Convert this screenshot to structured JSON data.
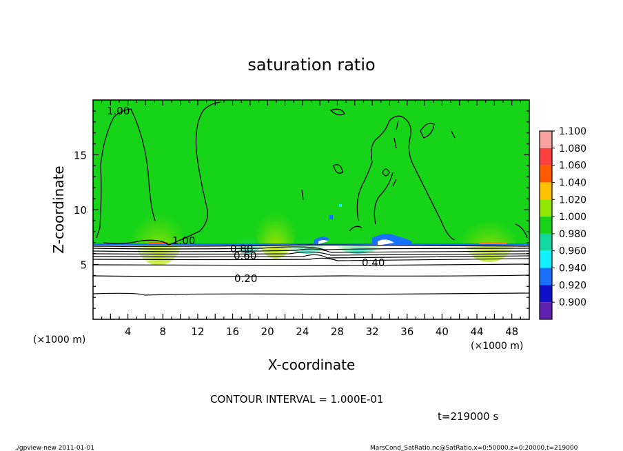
{
  "chart_data": {
    "type": "heatmap",
    "title": "saturation ratio",
    "xlabel": "X-coordinate",
    "ylabel": "Z-coordinate",
    "x_unit": "(×1000 m)",
    "z_unit": "(×1000 m)",
    "xlim": [
      0,
      50
    ],
    "ylim": [
      0,
      20
    ],
    "x_ticks": [
      "4",
      "8",
      "12",
      "16",
      "20",
      "24",
      "28",
      "32",
      "36",
      "40",
      "44",
      "48"
    ],
    "y_ticks": [
      "5",
      "10",
      "15"
    ],
    "colorbar": {
      "labels": [
        "1.100",
        "1.080",
        "1.060",
        "1.040",
        "1.020",
        "1.000",
        "0.980",
        "0.960",
        "0.940",
        "0.920",
        "0.900"
      ],
      "colors": [
        "#f8a0a0",
        "#ff4040",
        "#ff5a00",
        "#ffc000",
        "#8ee800",
        "#18d418",
        "#10d8a0",
        "#10f0ff",
        "#1870ff",
        "#1010c8",
        "#6020b0"
      ]
    },
    "contours": [
      {
        "label": "1.00",
        "z_approx": 7.0
      },
      {
        "label": "0.80",
        "z_approx": 6.3
      },
      {
        "label": "0.60",
        "z_approx": 5.8
      },
      {
        "label": "0.40",
        "z_approx": 5.3
      },
      {
        "label": "0.20",
        "z_approx": 4.0
      }
    ],
    "contour_interval": "CONTOUR INTERVAL = 1.000E-01",
    "time_label": "t=219000 s"
  },
  "footer": {
    "left": "./gpview-new  2011-01-01",
    "right": "MarsCond_SatRatio.nc@SatRatio,x=0:50000,z=0:20000,t=219000"
  },
  "colors": {
    "green": "#18d418",
    "cyan": "#10d8c0",
    "blue": "#1870ff"
  }
}
